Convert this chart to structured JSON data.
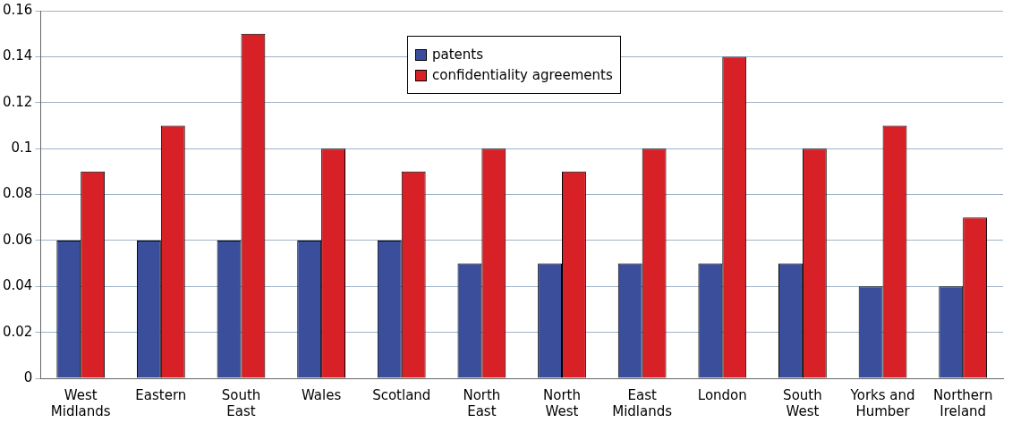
{
  "chart_data": {
    "type": "bar",
    "categories": [
      "West Midlands",
      "Eastern",
      "South East",
      "Wales",
      "Scotland",
      "North East",
      "North West",
      "East Midlands",
      "London",
      "South West",
      "Yorks and Humber",
      "Northern Ireland"
    ],
    "series": [
      {
        "name": "patents",
        "color": "#3a4e9c",
        "values": [
          0.06,
          0.06,
          0.06,
          0.06,
          0.06,
          0.05,
          0.05,
          0.05,
          0.05,
          0.05,
          0.04,
          0.04
        ]
      },
      {
        "name": "confidentiality agreements",
        "color": "#d82027",
        "values": [
          0.09,
          0.11,
          0.15,
          0.1,
          0.09,
          0.1,
          0.09,
          0.1,
          0.14,
          0.1,
          0.11,
          0.07
        ]
      }
    ],
    "ylim": [
      0,
      0.16
    ],
    "yticks": [
      0,
      0.02,
      0.04,
      0.06,
      0.08,
      0.1,
      0.12,
      0.14,
      0.16
    ],
    "grid": "y",
    "legend": "top"
  }
}
